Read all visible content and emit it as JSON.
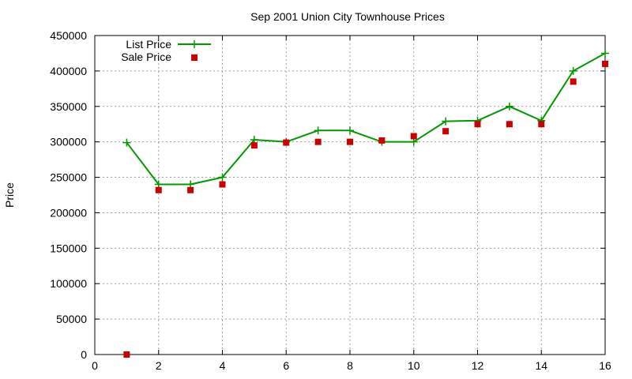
{
  "chart_data": {
    "type": "line",
    "title": "Sep 2001 Union City Townhouse Prices",
    "xlabel": "",
    "ylabel": "Price",
    "xlim": [
      0,
      16
    ],
    "ylim": [
      0,
      450000
    ],
    "xticks": [
      0,
      2,
      4,
      6,
      8,
      10,
      12,
      14,
      16
    ],
    "yticks": [
      0,
      50000,
      100000,
      150000,
      200000,
      250000,
      300000,
      350000,
      400000,
      450000
    ],
    "grid": true,
    "legend_position": "top-left",
    "series": [
      {
        "name": "List Price",
        "style": "line+points",
        "marker": "plus",
        "color": "#009900",
        "x": [
          1,
          2,
          3,
          4,
          5,
          6,
          7,
          8,
          9,
          10,
          11,
          12,
          13,
          14,
          15,
          16
        ],
        "y": [
          299000,
          240000,
          240000,
          250000,
          303000,
          300000,
          316000,
          316000,
          300000,
          300000,
          329000,
          330000,
          350000,
          330000,
          400000,
          425000
        ]
      },
      {
        "name": "Sale Price",
        "style": "points",
        "marker": "square",
        "color": "#cc0000",
        "x": [
          1,
          2,
          3,
          4,
          5,
          6,
          7,
          8,
          9,
          10,
          11,
          12,
          13,
          14,
          15,
          16
        ],
        "y": [
          0,
          232000,
          232000,
          240000,
          295000,
          299000,
          300000,
          300000,
          302000,
          308000,
          315000,
          325000,
          325000,
          325000,
          385000,
          410000
        ]
      }
    ]
  }
}
